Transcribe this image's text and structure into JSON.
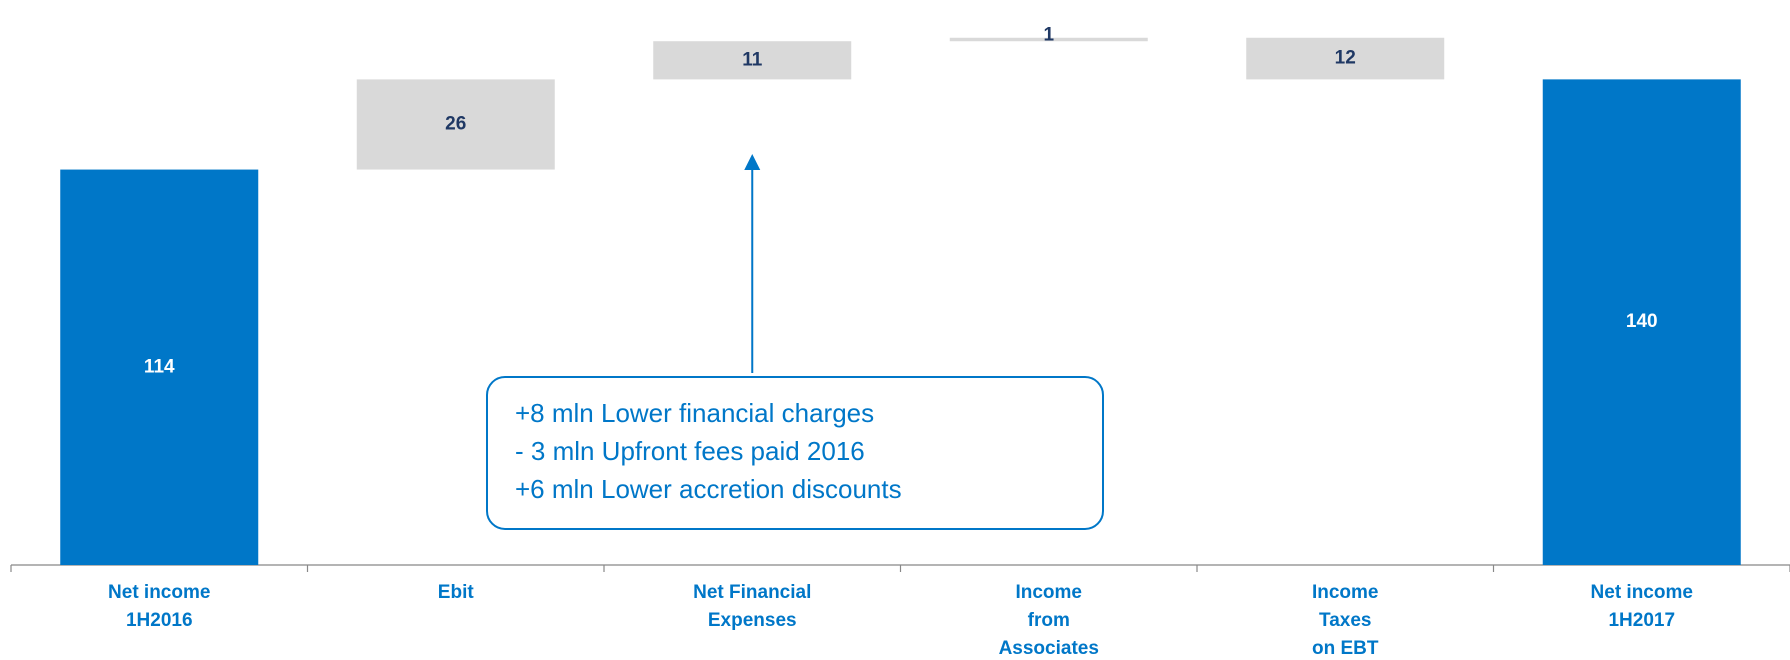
{
  "chart_data": {
    "type": "waterfall",
    "categories": [
      [
        "Net income",
        "1H2016"
      ],
      [
        "Ebit"
      ],
      [
        "Net Financial",
        "Expenses"
      ],
      [
        "Income",
        "from",
        "Associates"
      ],
      [
        "Income",
        "Taxes",
        "on EBT"
      ],
      [
        "Net income",
        "1H2017"
      ]
    ],
    "values": [
      114,
      26,
      11,
      1,
      12,
      140
    ],
    "kinds": [
      "total",
      "increase",
      "increase",
      "increase",
      "decrease",
      "total"
    ],
    "total_color": "#0077c8",
    "step_color": "#d9d9d9",
    "ylim": [
      0,
      160
    ],
    "annotation": {
      "lines": [
        "+8 mln Lower financial charges",
        "- 3 mln Upfront fees paid 2016",
        "+6 mln Lower accretion discounts"
      ],
      "target": 2
    }
  }
}
